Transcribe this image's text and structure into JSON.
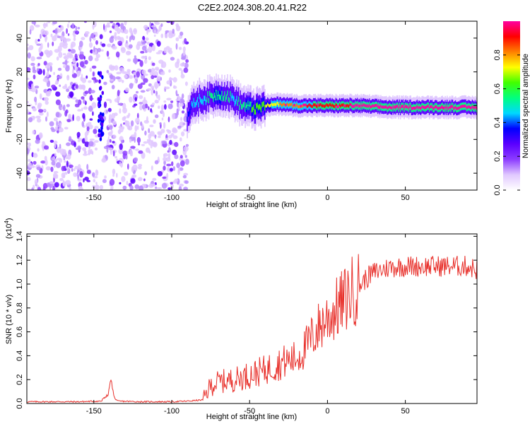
{
  "chart_data": [
    {
      "type": "heatmap",
      "title": "C2E2.2024.308.20.41.R22",
      "xlabel": "Height of straight line (km)",
      "ylabel": "Frequency (Hz)",
      "xlim": [
        -193,
        96
      ],
      "ylim": [
        -50,
        50
      ],
      "x_ticks": [
        -150,
        -100,
        -50,
        0,
        50
      ],
      "x_tick_labels": [
        "-150",
        "-100",
        "-50",
        "0",
        "50"
      ],
      "y_ticks": [
        -40,
        -20,
        0,
        20,
        40
      ],
      "y_tick_labels": [
        "-40",
        "-20",
        "0",
        "20",
        "40"
      ],
      "noise_region_x": [
        -193,
        -90
      ],
      "signal_track": {
        "x": [
          -90,
          -85,
          -80,
          -75,
          -70,
          -65,
          -60,
          -55,
          -50,
          -45,
          -40,
          -30,
          -20,
          -10,
          0,
          10,
          20,
          40,
          60,
          80,
          96
        ],
        "freq": [
          -6,
          2,
          4,
          5,
          7,
          6,
          4,
          0,
          -1,
          -2,
          0,
          1,
          0,
          0,
          0,
          0,
          0,
          -1,
          -1,
          -1,
          -1
        ],
        "amplitude": [
          0.35,
          0.4,
          0.45,
          0.5,
          0.55,
          0.5,
          0.45,
          0.5,
          0.55,
          0.6,
          0.65,
          0.75,
          0.8,
          0.85,
          0.9,
          0.9,
          0.95,
          0.95,
          0.95,
          0.95,
          0.95
        ]
      },
      "colorbar": {
        "label": "Normalized spectral amplitude",
        "range": [
          0,
          1
        ],
        "ticks": [
          0.0,
          0.2,
          0.4,
          0.6,
          0.8
        ],
        "tick_labels": [
          "0.0",
          "0.2",
          "0.4",
          "0.6",
          "0.8"
        ],
        "colors": [
          "#ffffff",
          "#e0c8ff",
          "#8c3cff",
          "#5a00ff",
          "#0000ff",
          "#00d8ff",
          "#00ff80",
          "#40ff00",
          "#ffff00",
          "#ff8000",
          "#ff0000",
          "#ff00a0"
        ]
      }
    },
    {
      "type": "line",
      "xlabel": "Height of straight line (km)",
      "ylabel": "SNR (10 * v/v)",
      "scale_label": "(x10",
      "scale_exponent": "4",
      "scale_close": ")",
      "xlim": [
        -193,
        96
      ],
      "ylim": [
        0.0,
        1.42
      ],
      "x_ticks": [
        -150,
        -100,
        -50,
        0,
        50
      ],
      "x_tick_labels": [
        "-150",
        "-100",
        "-50",
        "0",
        "50"
      ],
      "y_ticks": [
        0.0,
        0.2,
        0.4,
        0.6,
        0.8,
        1.0,
        1.2,
        1.4
      ],
      "y_tick_labels": [
        "0.0",
        "0.2",
        "0.4",
        "0.6",
        "0.8",
        "1.0",
        "1.2",
        "1.4"
      ],
      "series": [
        {
          "name": "SNR",
          "color": "#e8312c",
          "x": [
            -193,
            -180,
            -160,
            -145,
            -141,
            -139,
            -137,
            -135,
            -120,
            -100,
            -90,
            -80,
            -75,
            -70,
            -60,
            -50,
            -40,
            -30,
            -20,
            -15,
            -10,
            -5,
            0,
            5,
            10,
            15,
            20,
            25,
            30,
            35,
            40,
            50,
            60,
            70,
            80,
            90,
            96
          ],
          "y": [
            0.015,
            0.015,
            0.015,
            0.02,
            0.07,
            0.21,
            0.05,
            0.02,
            0.015,
            0.015,
            0.02,
            0.03,
            0.15,
            0.18,
            0.2,
            0.24,
            0.28,
            0.34,
            0.38,
            0.45,
            0.55,
            0.65,
            0.72,
            0.78,
            0.85,
            0.93,
            0.98,
            1.05,
            1.1,
            1.12,
            1.14,
            1.15,
            1.15,
            1.15,
            1.15,
            1.15,
            1.12
          ]
        }
      ]
    }
  ]
}
